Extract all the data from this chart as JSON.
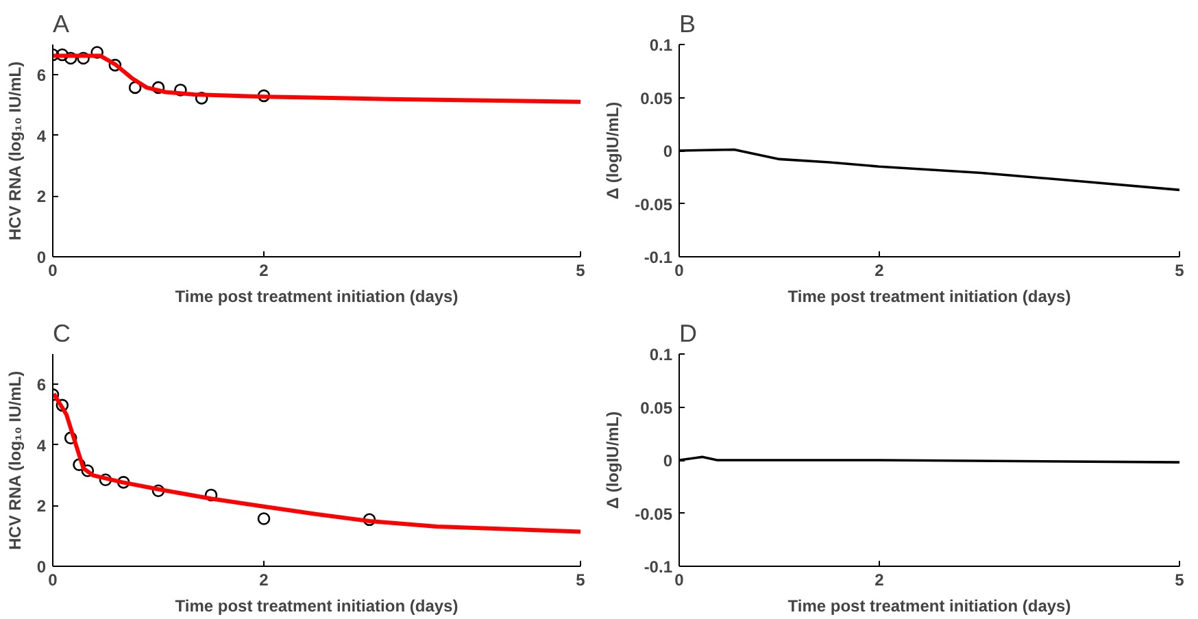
{
  "chart_data": [
    {
      "type": "scatter",
      "title": "A",
      "xlabel": "Time post treatment initiation (days)",
      "ylabel": "HCV RNA (log₁₀ IU/mL)",
      "xlim": [
        0,
        5
      ],
      "xticks": [
        0,
        2,
        5
      ],
      "ylim": [
        0,
        7
      ],
      "yticks": [
        0,
        2,
        4,
        6
      ],
      "grid": false,
      "series": [
        {
          "color": "#000000",
          "marker": "circle",
          "x": [
            0,
            0.09,
            0.17,
            0.29,
            0.42,
            0.59,
            0.78,
            1.0,
            1.21,
            1.41,
            2.0
          ],
          "values": [
            6.66,
            6.66,
            6.55,
            6.55,
            6.74,
            6.32,
            5.58,
            5.58,
            5.5,
            5.23,
            5.31
          ]
        },
        {
          "type": "line",
          "color": "#ff0000",
          "x": [
            0,
            0.45,
            0.59,
            0.75,
            0.89,
            1.07,
            1.34,
            2.0,
            3.18,
            5.0
          ],
          "values": [
            6.63,
            6.63,
            6.35,
            5.89,
            5.58,
            5.43,
            5.35,
            5.28,
            5.2,
            5.11
          ]
        }
      ]
    },
    {
      "type": "line",
      "title": "B",
      "xlabel": "Time post treatment initiation (days)",
      "ylabel": "Δ (logIU/mL)",
      "xlim": [
        0,
        5
      ],
      "xticks": [
        0,
        2,
        5
      ],
      "ylim": [
        -0.1,
        0.1
      ],
      "yticks": [
        -0.1,
        -0.05,
        0,
        0.05,
        0.1
      ],
      "grid": false,
      "series": [
        {
          "color": "#000000",
          "x": [
            0,
            0.55,
            1.0,
            1.5,
            2.0,
            3.02,
            4.03,
            5.0
          ],
          "values": [
            0,
            0.001,
            -0.008,
            -0.011,
            -0.015,
            -0.021,
            -0.029,
            -0.037
          ]
        }
      ]
    },
    {
      "type": "scatter",
      "title": "C",
      "xlabel": "Time post treatment initiation (days)",
      "ylabel": "HCV RNA (log₁₀ IU/mL)",
      "xlim": [
        0,
        5
      ],
      "xticks": [
        0,
        2,
        5
      ],
      "ylim": [
        0,
        7
      ],
      "yticks": [
        0,
        2,
        4,
        6
      ],
      "grid": false,
      "series": [
        {
          "color": "#000000",
          "marker": "circle",
          "x": [
            0,
            0.09,
            0.17,
            0.25,
            0.33,
            0.5,
            0.67,
            1.0,
            1.5,
            2.0,
            3.0
          ],
          "values": [
            5.66,
            5.31,
            4.23,
            3.35,
            3.15,
            2.85,
            2.77,
            2.49,
            2.35,
            1.57,
            1.54
          ]
        },
        {
          "type": "line",
          "color": "#ff0000",
          "x": [
            0.01,
            0.13,
            0.22,
            0.29,
            0.38,
            0.66,
            1.0,
            1.5,
            2.0,
            2.49,
            3.0,
            3.64,
            5.0
          ],
          "values": [
            5.69,
            5.0,
            4.0,
            3.23,
            3.0,
            2.77,
            2.54,
            2.23,
            1.97,
            1.72,
            1.49,
            1.31,
            1.14
          ]
        }
      ]
    },
    {
      "type": "line",
      "title": "D",
      "xlabel": "Time post treatment initiation (days)",
      "ylabel": "Δ (logIU/mL)",
      "xlim": [
        0,
        5
      ],
      "xticks": [
        0,
        2,
        5
      ],
      "ylim": [
        -0.1,
        0.1
      ],
      "yticks": [
        -0.1,
        -0.05,
        0,
        0.05,
        0.1
      ],
      "grid": false,
      "series": [
        {
          "color": "#000000",
          "x": [
            0,
            0.23,
            0.38,
            2.0,
            5.0
          ],
          "values": [
            0,
            0.003,
            0,
            0,
            -0.002
          ]
        }
      ]
    }
  ]
}
